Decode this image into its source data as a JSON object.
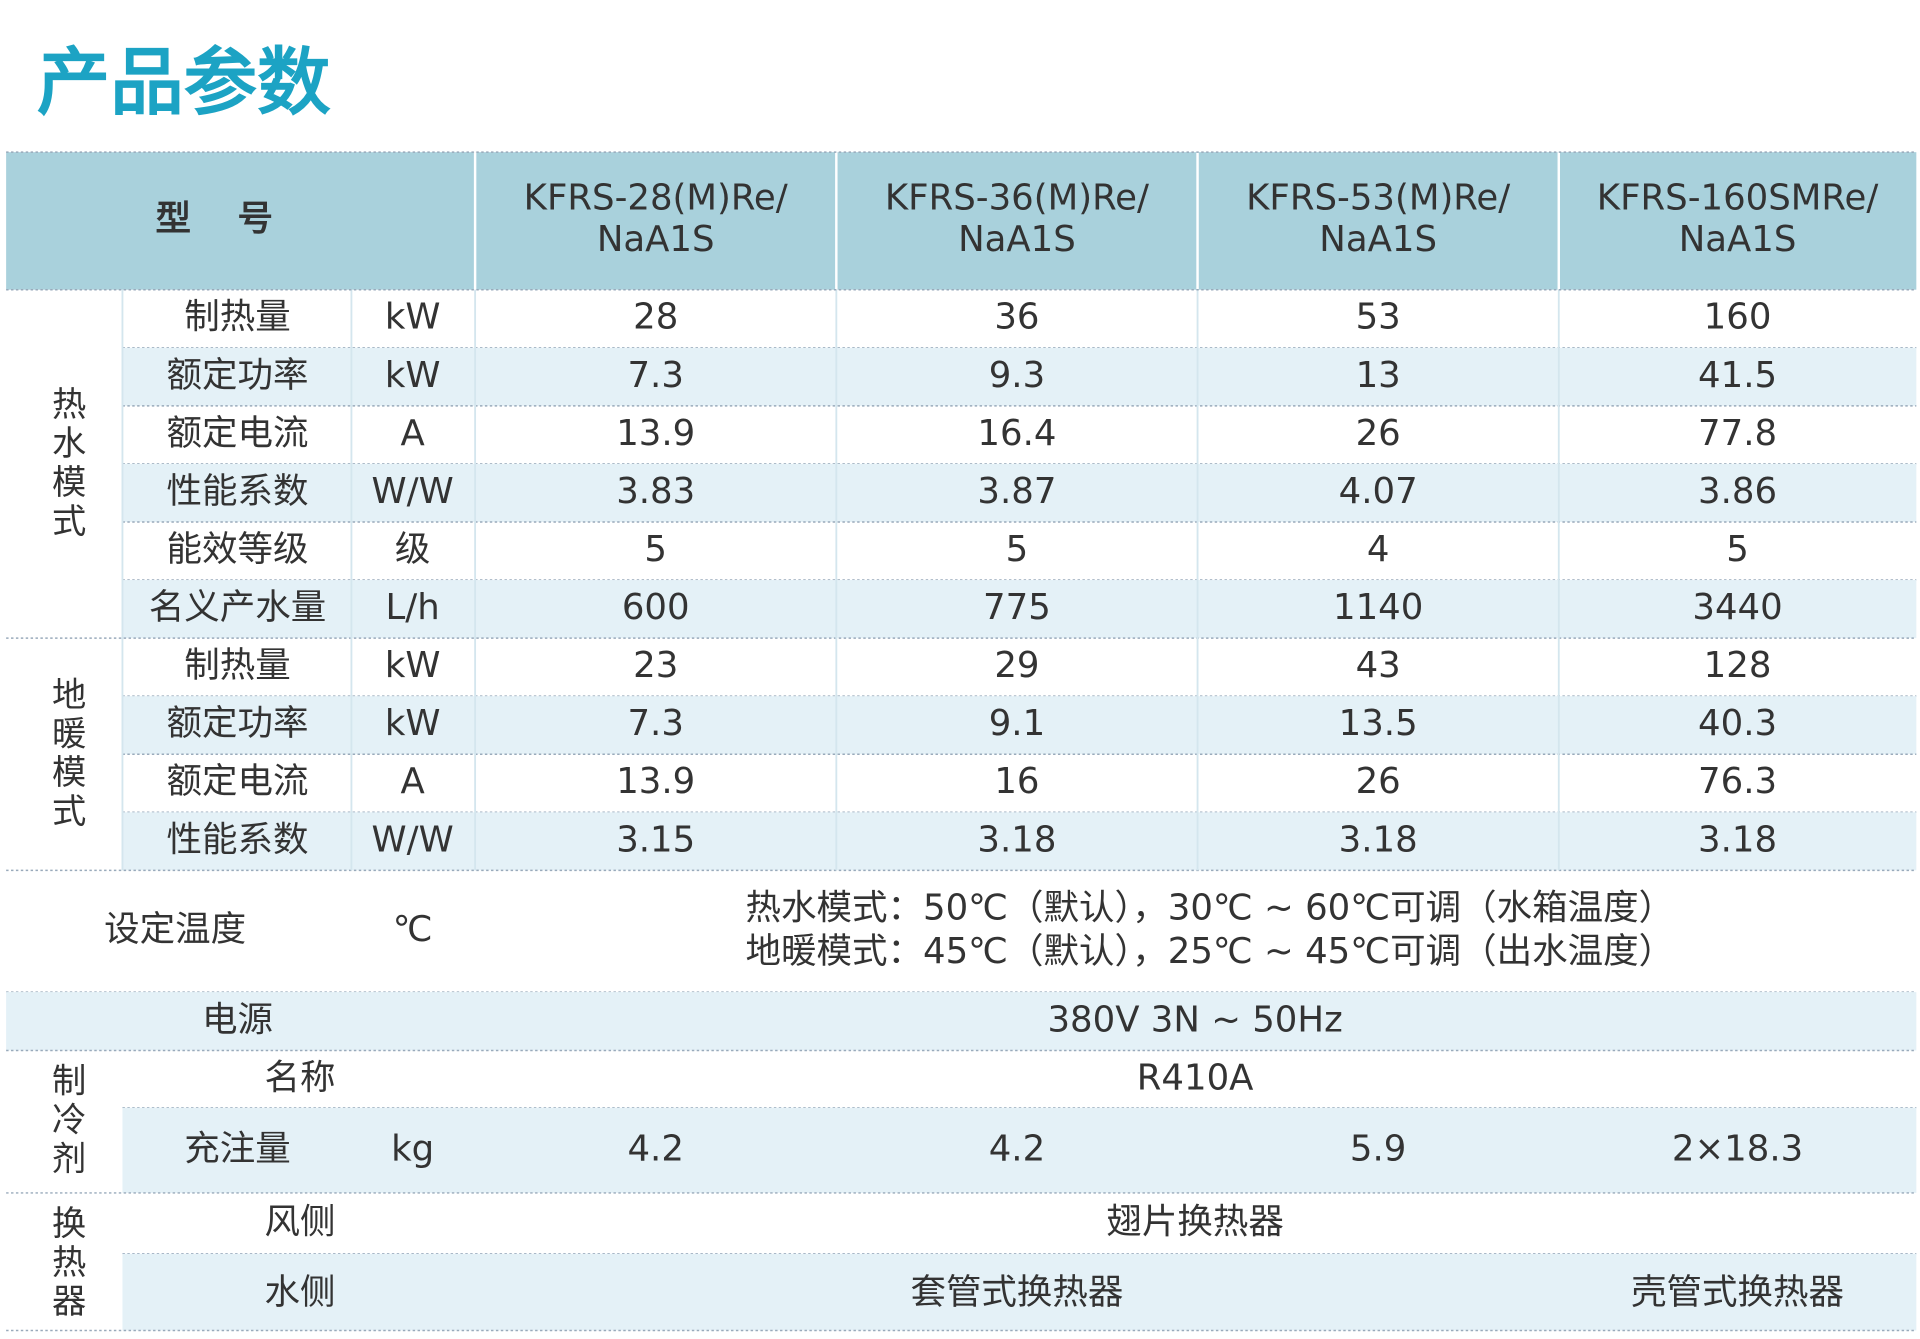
{
  "title": "产品参数",
  "table": {
    "header": {
      "model_label": "型号",
      "models": [
        [
          "KFRS-28(M)Re/",
          "NaA1S"
        ],
        [
          "KFRS-36(M)Re/",
          "NaA1S"
        ],
        [
          "KFRS-53(M)Re/",
          "NaA1S"
        ],
        [
          "KFRS-160SMRe/",
          "NaA1S"
        ]
      ]
    },
    "groups": [
      {
        "label": "热水模式",
        "rows": [
          {
            "name": "制热量",
            "unit": "kW",
            "values": [
              28,
              36,
              53,
              160
            ]
          },
          {
            "name": "额定功率",
            "unit": "kW",
            "values": [
              7.3,
              9.3,
              13,
              41.5
            ]
          },
          {
            "name": "额定电流",
            "unit": "A",
            "values": [
              13.9,
              16.4,
              26,
              77.8
            ]
          },
          {
            "name": "性能系数",
            "unit": "W/W",
            "values": [
              3.83,
              3.87,
              4.07,
              3.86
            ]
          },
          {
            "name": "能效等级",
            "unit": "级",
            "values": [
              5,
              5,
              4,
              5
            ]
          },
          {
            "name": "名义产水量",
            "unit": "L/h",
            "values": [
              600,
              775,
              1140,
              3440
            ]
          }
        ]
      },
      {
        "label": "地暖模式",
        "rows": [
          {
            "name": "制热量",
            "unit": "kW",
            "values": [
              23,
              29,
              43,
              128
            ]
          },
          {
            "name": "额定功率",
            "unit": "kW",
            "values": [
              7.3,
              9.1,
              13.5,
              40.3
            ]
          },
          {
            "name": "额定电流",
            "unit": "A",
            "values": [
              13.9,
              16,
              26,
              76.3
            ]
          },
          {
            "name": "性能系数",
            "unit": "W/W",
            "values": [
              3.15,
              3.18,
              3.18,
              3.18
            ]
          }
        ]
      }
    ],
    "setting": {
      "name": "设定温度",
      "unit": "℃",
      "lines": [
        "热水模式：50℃（默认），30℃ ~ 60℃可调（水箱温度）",
        "地暖模式：45℃（默认），25℃ ~ 45℃可调（出水温度）"
      ]
    },
    "power": {
      "name": "电源",
      "value": "380V 3N ~ 50Hz"
    },
    "refrigerant": {
      "label": "制冷剂",
      "name_row": {
        "name": "名称",
        "value": "R410A"
      },
      "charge_row": {
        "name": "充注量",
        "unit": "kg",
        "values": [
          4.2,
          4.2,
          5.9,
          "2×18.3"
        ]
      }
    },
    "heat_exchanger": {
      "label": "换热器",
      "air_side": {
        "name": "风侧",
        "value": "翅片换热器"
      },
      "water_side": {
        "name": "水侧",
        "values": [
          "套管式换热器",
          "壳管式换热器"
        ]
      }
    }
  }
}
